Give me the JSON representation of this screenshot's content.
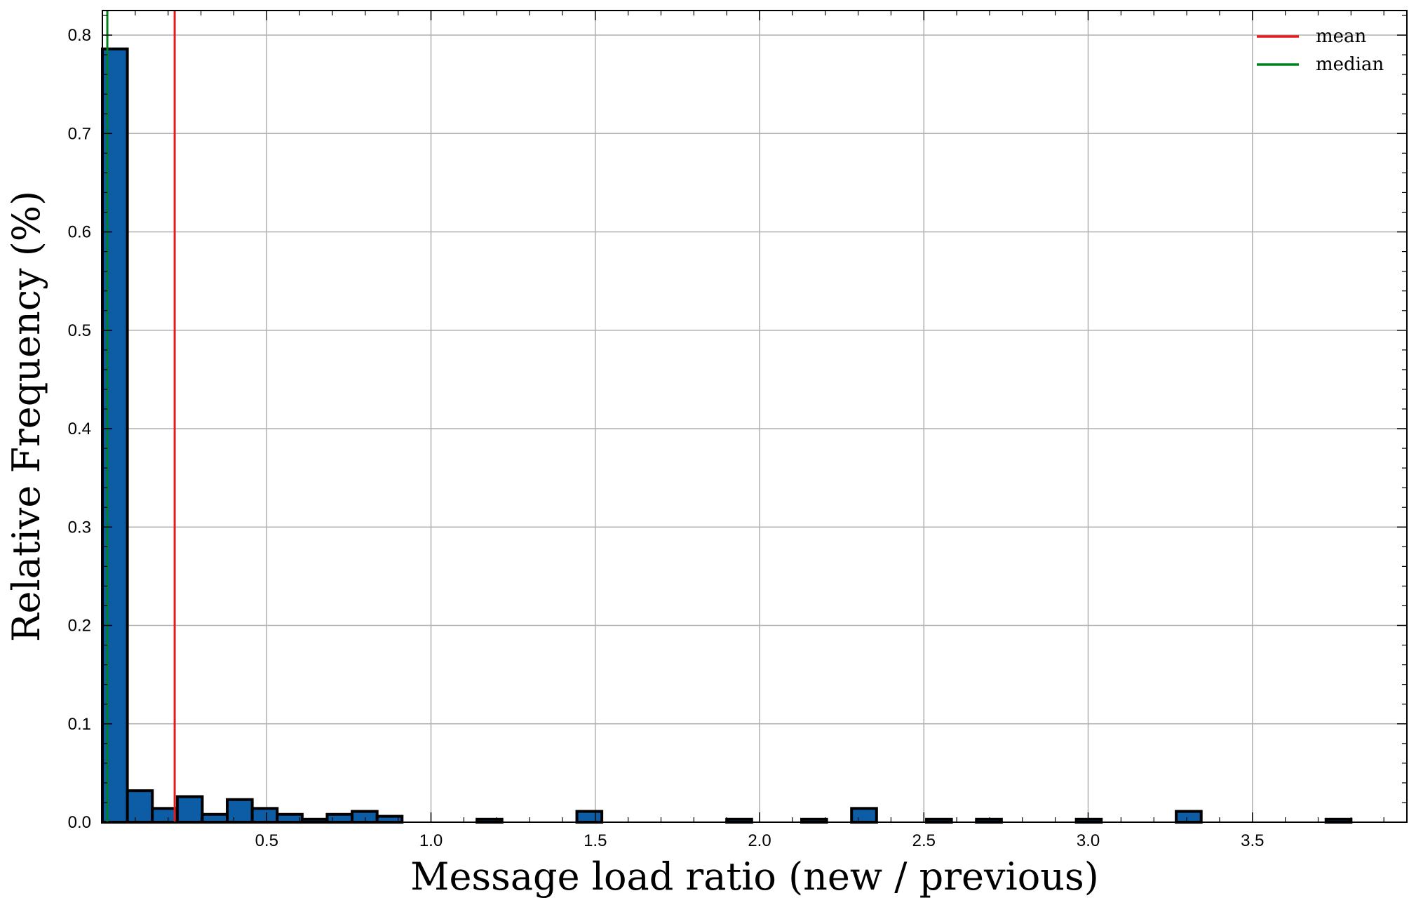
{
  "chart_data": {
    "type": "bar",
    "xlabel": "Message load ratio (new / previous)",
    "ylabel": "Relative Frequency (%)",
    "xlim": [
      0,
      3.97
    ],
    "ylim": [
      0,
      0.825
    ],
    "xticks": [
      0.5,
      1.0,
      1.5,
      2.0,
      2.5,
      3.0,
      3.5
    ],
    "xtick_labels": [
      "0.5",
      "1.0",
      "1.5",
      "2.0",
      "2.5",
      "3.0",
      "3.5"
    ],
    "yticks": [
      0.0,
      0.1,
      0.2,
      0.3,
      0.4,
      0.5,
      0.6,
      0.7,
      0.8
    ],
    "ytick_labels": [
      "0.0",
      "0.1",
      "0.2",
      "0.3",
      "0.4",
      "0.5",
      "0.6",
      "0.7",
      "0.8"
    ],
    "grid": true,
    "legend_position": "top-right",
    "bar_color": "#0c5da5",
    "bin_width": 0.076,
    "bins": [
      {
        "x": 0.0,
        "value": 0.786
      },
      {
        "x": 0.076,
        "value": 0.032
      },
      {
        "x": 0.152,
        "value": 0.014
      },
      {
        "x": 0.228,
        "value": 0.026
      },
      {
        "x": 0.304,
        "value": 0.008
      },
      {
        "x": 0.38,
        "value": 0.023
      },
      {
        "x": 0.456,
        "value": 0.014
      },
      {
        "x": 0.532,
        "value": 0.008
      },
      {
        "x": 0.608,
        "value": 0.003
      },
      {
        "x": 0.684,
        "value": 0.008
      },
      {
        "x": 0.76,
        "value": 0.011
      },
      {
        "x": 0.836,
        "value": 0.006
      },
      {
        "x": 1.14,
        "value": 0.003
      },
      {
        "x": 1.444,
        "value": 0.011
      },
      {
        "x": 1.9,
        "value": 0.003
      },
      {
        "x": 2.128,
        "value": 0.003
      },
      {
        "x": 2.28,
        "value": 0.014
      },
      {
        "x": 2.508,
        "value": 0.003
      },
      {
        "x": 2.66,
        "value": 0.003
      },
      {
        "x": 2.964,
        "value": 0.003
      },
      {
        "x": 3.268,
        "value": 0.011
      },
      {
        "x": 3.724,
        "value": 0.003
      }
    ],
    "lines": [
      {
        "name": "mean",
        "x": 0.22,
        "color": "#e41a1c"
      },
      {
        "name": "median",
        "x": 0.015,
        "color": "#00821e"
      }
    ]
  }
}
